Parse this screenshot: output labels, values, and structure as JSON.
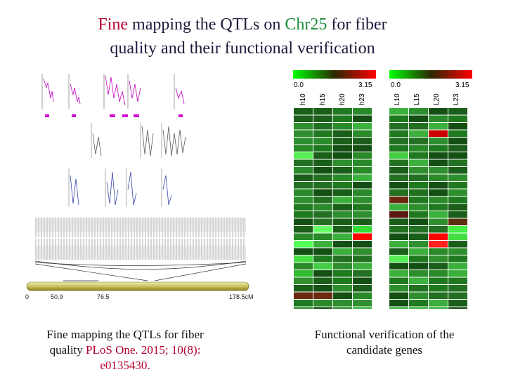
{
  "title": {
    "part1": "Fine",
    "part2": " mapping the QTLs on ",
    "part3": "Chr25",
    "part4": " for fiber",
    "line2": "quality and their functional verification"
  },
  "qtl_figure": {
    "chromosome_ticks": [
      "0",
      "50.9",
      "76.5",
      "178.5cM"
    ]
  },
  "heatmap_left": {
    "scale_min": "0.0",
    "scale_max": "3.15",
    "columns": [
      "h10",
      "h15",
      "h20",
      "h23"
    ]
  },
  "heatmap_right": {
    "scale_min": "0.0",
    "scale_max": "3.15",
    "columns": [
      "L10",
      "L15",
      "L20",
      "L23"
    ]
  },
  "captions": {
    "left_line1": "Fine mapping the QTLs for fiber",
    "left_line2_plain": "quality ",
    "left_line2_red": "PLoS One. 2015; 10(8):",
    "left_line3_red": "e0135430.",
    "right": "Functional verification of the candidate genes"
  },
  "colors": {
    "title_accent_red": "#b3002d",
    "title_accent_green": "#1e8a3a",
    "heat_low": "#00ff00",
    "heat_mid": "#2a2a00",
    "heat_high": "#ff0000"
  }
}
